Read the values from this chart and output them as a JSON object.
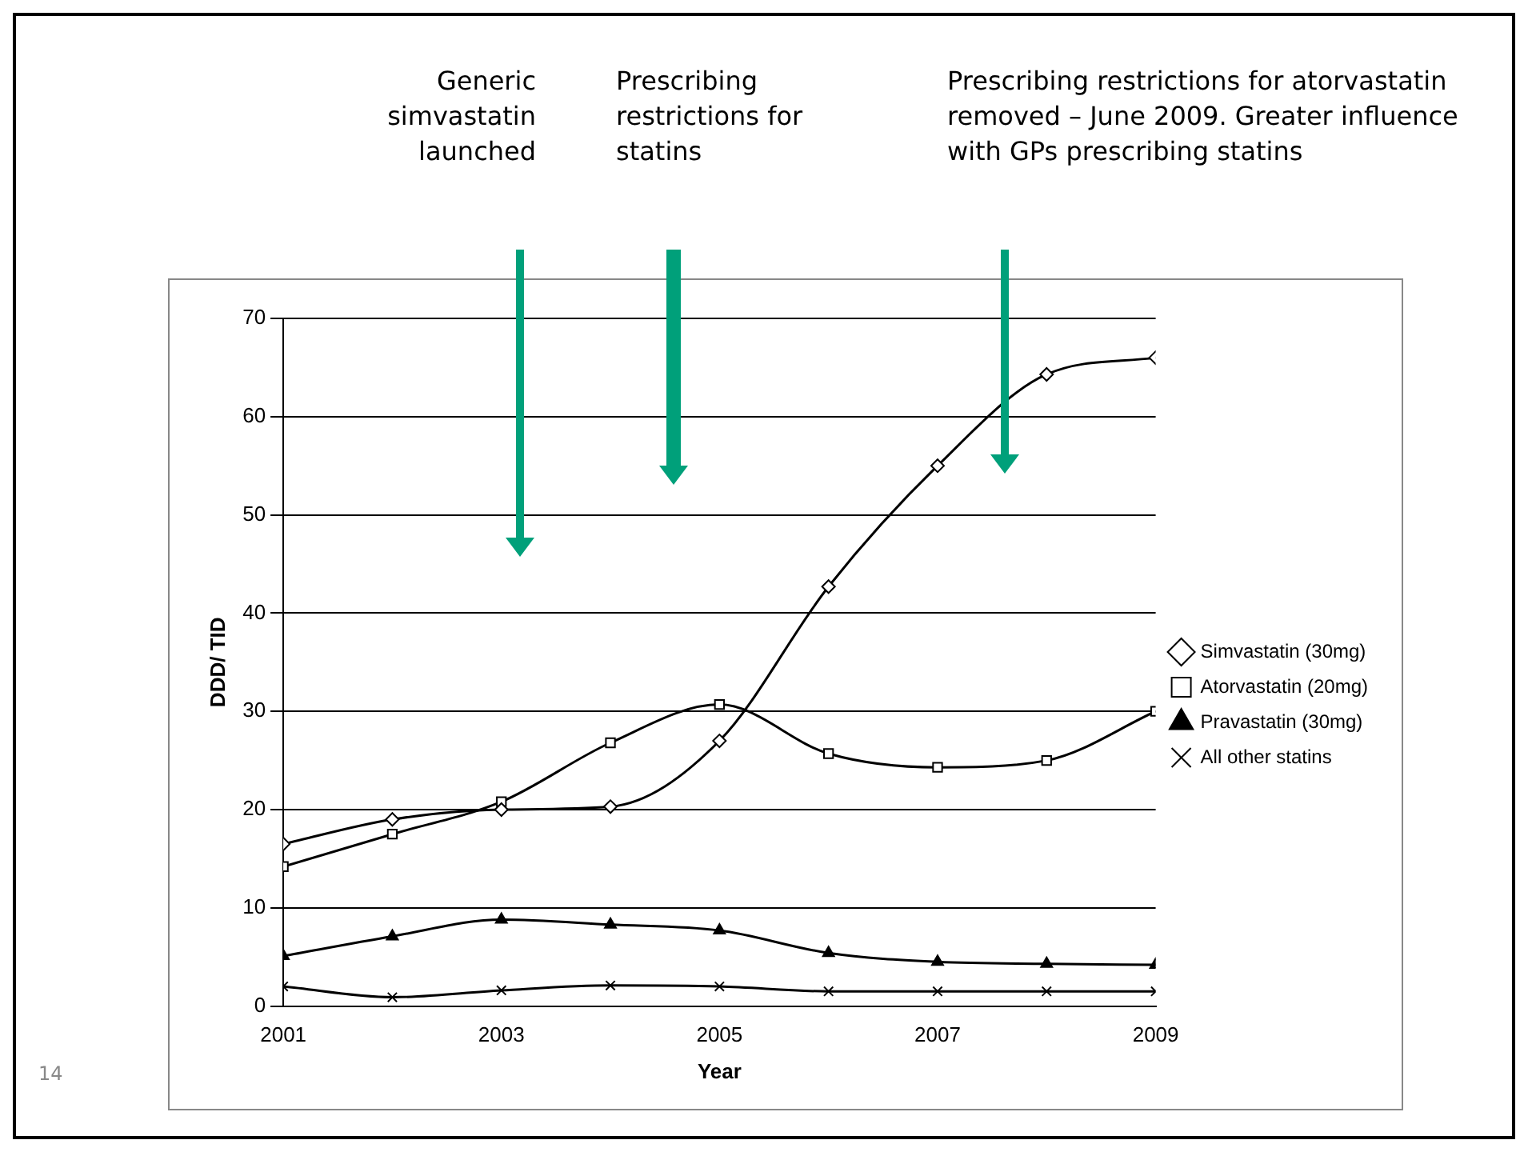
{
  "chart_data": {
    "type": "line",
    "xlabel": "Year",
    "ylabel": "DDD/ TID",
    "x": [
      2001,
      2002,
      2003,
      2004,
      2005,
      2006,
      2007,
      2008,
      2009
    ],
    "xlim": [
      2001,
      2009
    ],
    "xticks": [
      2001,
      2003,
      2005,
      2007,
      2009
    ],
    "ylim": [
      0,
      70
    ],
    "yticks": [
      0,
      10,
      20,
      30,
      40,
      50,
      60,
      70
    ],
    "grid": "y",
    "legend": "right",
    "series": [
      {
        "name": "Simvastatin (30mg)",
        "color": "#000000",
        "marker": "diamond",
        "values": [
          16.5,
          19,
          20,
          20.3,
          27,
          42.7,
          55,
          64.3,
          66
        ]
      },
      {
        "name": "Atorvastatin (20mg)",
        "color": "#000000",
        "marker": "square",
        "values": [
          14.2,
          17.5,
          20.8,
          26.8,
          30.7,
          25.7,
          24.3,
          25,
          30
        ]
      },
      {
        "name": "Pravastatin (30mg)",
        "color": "#000000",
        "marker": "triangle",
        "values": [
          5.1,
          7.1,
          8.8,
          8.3,
          7.7,
          5.4,
          4.5,
          4.3,
          4.2
        ]
      },
      {
        "name": "All other statins",
        "color": "#000000",
        "marker": "cross",
        "values": [
          2,
          0.9,
          1.6,
          2.1,
          2,
          1.5,
          1.5,
          1.5,
          1.5
        ]
      }
    ],
    "annotations": [
      "Generic simvastatin launched",
      "Prescribing restrictions for statins",
      "Prescribing restrictions for atorvastatin removed – June 2009. Greater influence with GPs prescribing statins",
      "14"
    ]
  }
}
